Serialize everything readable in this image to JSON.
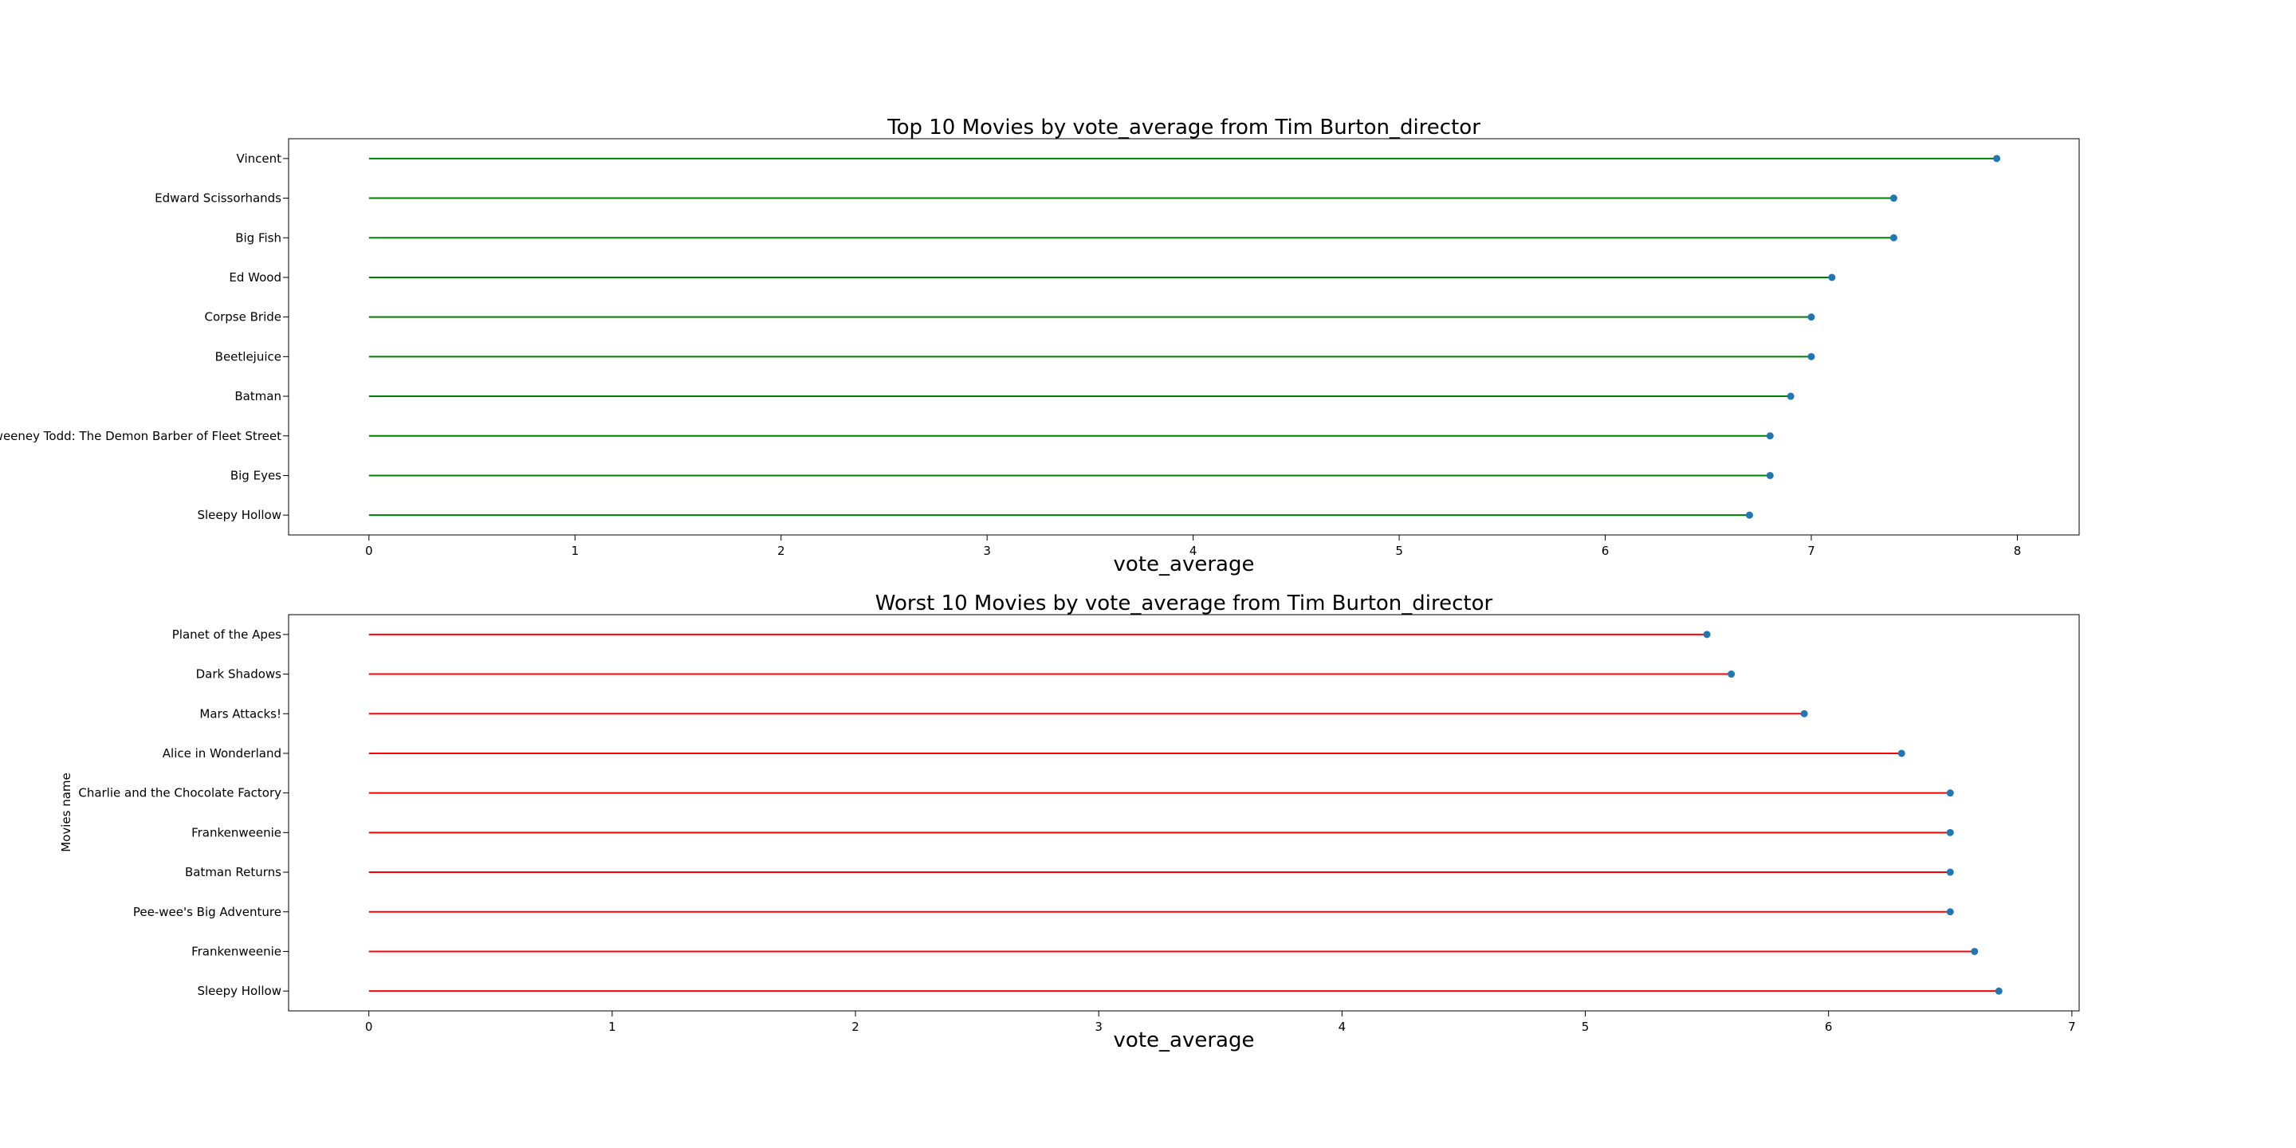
{
  "figure": {
    "ylabel": "Movies name"
  },
  "chart_data": [
    {
      "type": "lollipop",
      "title": "Top 10 Movies by vote_average from Tim Burton_director",
      "xlabel": "vote_average",
      "ylabel": "",
      "categories": [
        "Vincent",
        "Edward Scissorhands",
        "Big Fish",
        "Ed Wood",
        "Corpse Bride",
        "Beetlejuice",
        "Batman",
        "Sweeney Todd: The Demon Barber of Fleet Street",
        "Big Eyes",
        "Sleepy Hollow"
      ],
      "values": [
        7.9,
        7.4,
        7.4,
        7.1,
        7.0,
        7.0,
        6.9,
        6.8,
        6.8,
        6.7
      ],
      "xlim": [
        -0.39,
        8.3
      ],
      "xticks": [
        0,
        1,
        2,
        3,
        4,
        5,
        6,
        7,
        8
      ],
      "grid": false,
      "stem_color": "#008000",
      "marker_color": "#1f77b4"
    },
    {
      "type": "lollipop",
      "title": "Worst 10 Movies by vote_average from Tim Burton_director",
      "xlabel": "vote_average",
      "ylabel": "Movies name",
      "categories": [
        "Planet of the Apes",
        "Dark Shadows",
        "Mars Attacks!",
        "Alice in Wonderland",
        "Charlie and the Chocolate Factory",
        "Frankenweenie",
        "Batman Returns",
        "Pee-wee's Big Adventure",
        "Frankenweenie",
        "Sleepy Hollow"
      ],
      "values": [
        5.5,
        5.6,
        5.9,
        6.3,
        6.5,
        6.5,
        6.5,
        6.5,
        6.6,
        6.7
      ],
      "xlim": [
        -0.33,
        7.03
      ],
      "xticks": [
        0,
        1,
        2,
        3,
        4,
        5,
        6,
        7
      ],
      "grid": false,
      "stem_color": "#ff0000",
      "marker_color": "#1f77b4"
    }
  ]
}
